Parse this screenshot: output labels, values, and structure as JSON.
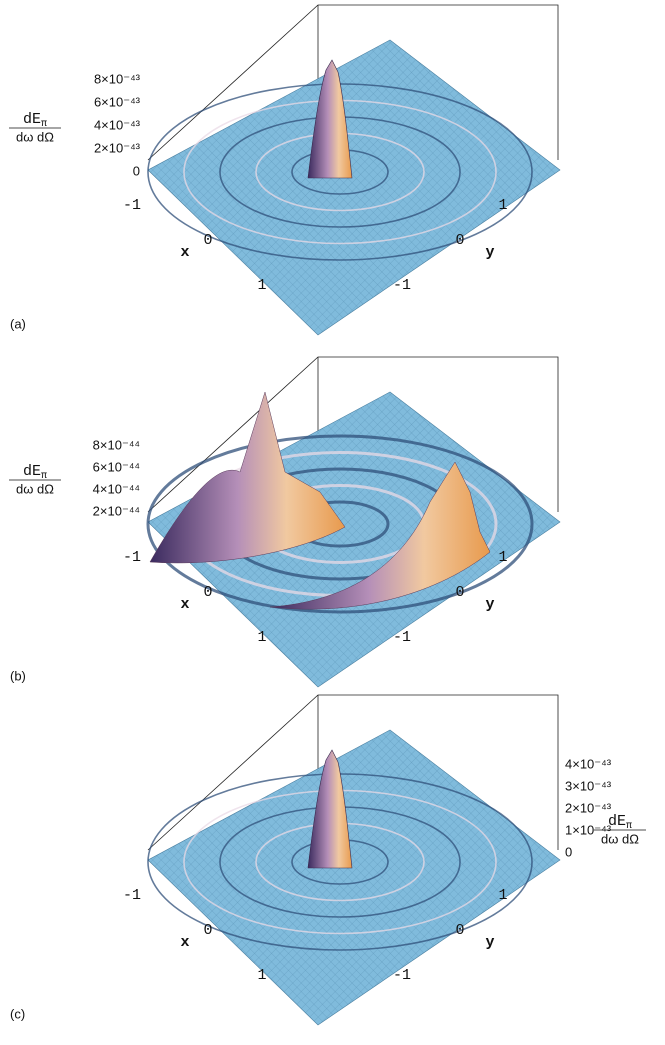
{
  "panels": [
    {
      "label": "(a)",
      "z_label": {
        "numerator": "dE",
        "subscript": "π",
        "denominator": "dω dΩ"
      },
      "z_ticks": [
        "0",
        "2×10⁻⁴³",
        "4×10⁻⁴³",
        "6×10⁻⁴³",
        "8×10⁻⁴³"
      ],
      "x_label": "x",
      "x_ticks": [
        "-1",
        "0",
        "1"
      ],
      "y_label": "y",
      "y_ticks": [
        "1",
        "0",
        "-1"
      ]
    },
    {
      "label": "(b)",
      "z_label": {
        "numerator": "dE",
        "subscript": "π",
        "denominator": "dω dΩ"
      },
      "z_ticks": [
        "2×10⁻⁴⁴",
        "4×10⁻⁴⁴",
        "6×10⁻⁴⁴",
        "8×10⁻⁴⁴"
      ],
      "x_label": "x",
      "x_ticks": [
        "-1",
        "0",
        "1"
      ],
      "y_label": "y",
      "y_ticks": [
        "1",
        "0",
        "-1"
      ]
    },
    {
      "label": "(c)",
      "z_label": {
        "numerator": "dE",
        "subscript": "π",
        "denominator": "dω dΩ"
      },
      "z_ticks": [
        "0",
        "1×10⁻⁴³",
        "2×10⁻⁴³",
        "3×10⁻⁴³",
        "4×10⁻⁴³"
      ],
      "x_label": "x",
      "x_ticks": [
        "-1",
        "0",
        "1"
      ],
      "y_label": "y",
      "y_ticks": [
        "1",
        "0",
        "-1"
      ]
    }
  ]
}
